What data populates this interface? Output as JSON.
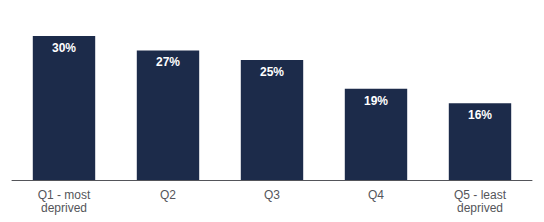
{
  "chart_data": {
    "type": "bar",
    "categories": [
      "Q1 - most\ndeprived",
      "Q2",
      "Q3",
      "Q4",
      "Q5 - least\ndeprived"
    ],
    "values": [
      30,
      27,
      25,
      19,
      16
    ],
    "value_labels": [
      "30%",
      "27%",
      "25%",
      "19%",
      "16%"
    ],
    "data_labels": true,
    "color": "#1c2b4a",
    "ylim": [
      0,
      35
    ],
    "tick_labels": "x",
    "grid": false
  }
}
